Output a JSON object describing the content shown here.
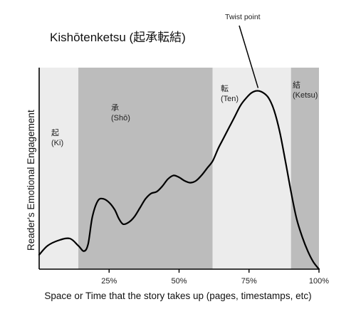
{
  "chart_data": {
    "type": "area",
    "title": "Kishōtenketsu (起承転結)",
    "xlabel": "Space or Time that the story takes up (pages, timestamps, etc)",
    "ylabel": "Reader's Emotional Engagement",
    "xlim": [
      0,
      100
    ],
    "ylim": [
      0,
      100
    ],
    "x_ticks": [
      {
        "value": 25,
        "label": "25%"
      },
      {
        "value": 50,
        "label": "50%"
      },
      {
        "value": 75,
        "label": "75%"
      },
      {
        "value": 100,
        "label": "100%"
      }
    ],
    "segments": [
      {
        "kanji": "起",
        "romaji": "(Ki)",
        "start": 0,
        "end": 14,
        "color": "#ececec"
      },
      {
        "kanji": "承",
        "romaji": "(Shō)",
        "start": 14,
        "end": 62,
        "color": "#bcbcbc"
      },
      {
        "kanji": "転",
        "romaji": "(Ten)",
        "start": 62,
        "end": 90,
        "color": "#ececec"
      },
      {
        "kanji": "結",
        "romaji": "(Ketsu)",
        "start": 90,
        "end": 100,
        "color": "#bcbcbc"
      }
    ],
    "series": [
      {
        "x": [
          0,
          3,
          7,
          11,
          14,
          16,
          17.5,
          19,
          21,
          23,
          25,
          27,
          28.5,
          30,
          32,
          34,
          36,
          38,
          40,
          42,
          44,
          46,
          48,
          50,
          52,
          54,
          56,
          58,
          60,
          62,
          64,
          66,
          68,
          70,
          72,
          74,
          76,
          78,
          80,
          82,
          84,
          86,
          88,
          90,
          92,
          94,
          96,
          98,
          100
        ],
        "y": [
          8,
          13,
          16,
          17,
          13,
          10,
          14,
          29,
          38,
          39,
          37,
          33,
          28,
          25,
          26,
          29,
          34,
          39,
          42,
          43,
          46,
          50,
          52,
          51,
          49,
          48,
          49,
          52,
          56,
          60,
          67,
          73,
          79,
          85,
          91,
          95,
          98,
          99,
          98,
          95,
          88,
          76,
          60,
          43,
          28,
          18,
          10,
          4,
          0
        ]
      }
    ],
    "annotations": [
      {
        "text": "Twist point",
        "x": 79,
        "y": 99
      }
    ],
    "grid": false,
    "legend": "none"
  }
}
